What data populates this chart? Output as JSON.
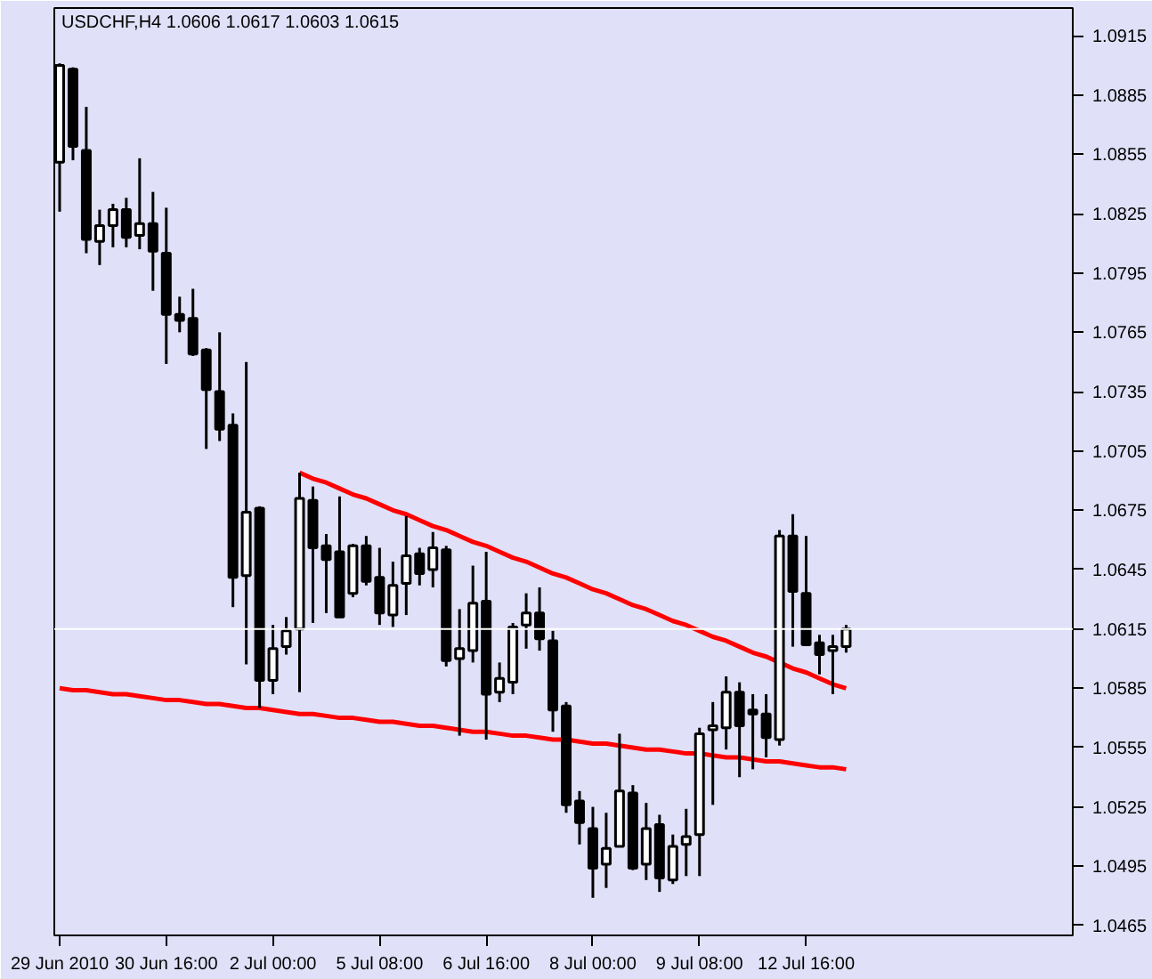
{
  "chart_data": {
    "type": "candlestick",
    "title": "USDCHF,H4  1.0606 1.0617 1.0603 1.0615",
    "categories": [
      "29 Jun 2010",
      null,
      null,
      null,
      null,
      null,
      null,
      null,
      "30 Jun 16:00",
      null,
      null,
      null,
      null,
      null,
      null,
      null,
      "2 Jul 00:00",
      null,
      null,
      null,
      null,
      null,
      null,
      null,
      "5 Jul 08:00",
      null,
      null,
      null,
      null,
      null,
      null,
      null,
      "6 Jul 16:00",
      null,
      null,
      null,
      null,
      null,
      null,
      null,
      "8 Jul 00:00",
      null,
      null,
      null,
      null,
      null,
      null,
      null,
      "9 Jul 08:00",
      null,
      null,
      null,
      null,
      null,
      null,
      null,
      "12 Jul 16:00",
      null,
      null,
      null
    ],
    "ohlc": [
      [
        1.0851,
        1.0901,
        1.0826,
        1.09
      ],
      [
        1.0898,
        1.0899,
        1.0852,
        1.0859
      ],
      [
        1.0857,
        1.0879,
        1.0805,
        1.0812
      ],
      [
        1.0811,
        1.0827,
        1.0799,
        1.0819
      ],
      [
        1.0819,
        1.083,
        1.0808,
        1.0827
      ],
      [
        1.0827,
        1.0833,
        1.0808,
        1.0813
      ],
      [
        1.0814,
        1.0853,
        1.0807,
        1.082
      ],
      [
        1.082,
        1.0836,
        1.0786,
        1.0806
      ],
      [
        1.0805,
        1.0828,
        1.0749,
        1.0774
      ],
      [
        1.0774,
        1.0783,
        1.0765,
        1.0771
      ],
      [
        1.0772,
        1.0787,
        1.0753,
        1.0754
      ],
      [
        1.0756,
        1.0757,
        1.0706,
        1.0736
      ],
      [
        1.0735,
        1.0765,
        1.071,
        1.0716
      ],
      [
        1.0718,
        1.0724,
        1.0626,
        1.0641
      ],
      [
        1.0642,
        1.075,
        1.0597,
        1.0674
      ],
      [
        1.0676,
        1.0677,
        1.0575,
        1.0589
      ],
      [
        1.0589,
        1.0617,
        1.0582,
        1.0605
      ],
      [
        1.0606,
        1.0621,
        1.0602,
        1.0614
      ],
      [
        1.0615,
        1.0694,
        1.0583,
        1.0681
      ],
      [
        1.068,
        1.0687,
        1.0618,
        1.0656
      ],
      [
        1.0657,
        1.0663,
        1.0623,
        1.065
      ],
      [
        1.0654,
        1.0682,
        1.0621,
        1.0621
      ],
      [
        1.0633,
        1.0658,
        1.0631,
        1.0657
      ],
      [
        1.0657,
        1.0662,
        1.0637,
        1.0639
      ],
      [
        1.0641,
        1.0656,
        1.0617,
        1.0623
      ],
      [
        1.0622,
        1.0649,
        1.0616,
        1.0637
      ],
      [
        1.0638,
        1.0672,
        1.0622,
        1.0652
      ],
      [
        1.0653,
        1.0656,
        1.0637,
        1.0643
      ],
      [
        1.0645,
        1.0664,
        1.0636,
        1.0656
      ],
      [
        1.0655,
        1.0657,
        1.0596,
        1.0599
      ],
      [
        1.06,
        1.0625,
        1.0561,
        1.0605
      ],
      [
        1.0604,
        1.0647,
        1.0598,
        1.0628
      ],
      [
        1.0629,
        1.0654,
        1.0559,
        1.0582
      ],
      [
        1.0583,
        1.0598,
        1.0578,
        1.059
      ],
      [
        1.0588,
        1.0618,
        1.0582,
        1.0616
      ],
      [
        1.0617,
        1.0633,
        1.0605,
        1.0623
      ],
      [
        1.0623,
        1.0636,
        1.0604,
        1.061
      ],
      [
        1.0609,
        1.0614,
        1.0563,
        1.0574
      ],
      [
        1.0576,
        1.0578,
        1.0522,
        1.0526
      ],
      [
        1.0528,
        1.0533,
        1.0506,
        1.0517
      ],
      [
        1.0514,
        1.0525,
        1.0479,
        1.0494
      ],
      [
        1.0496,
        1.0522,
        1.0484,
        1.0504
      ],
      [
        1.0505,
        1.0562,
        1.0505,
        1.0533
      ],
      [
        1.0532,
        1.0536,
        1.0493,
        1.0494
      ],
      [
        1.0496,
        1.0527,
        1.0488,
        1.0514
      ],
      [
        1.0516,
        1.0521,
        1.0482,
        1.0489
      ],
      [
        1.0488,
        1.0511,
        1.0486,
        1.0505
      ],
      [
        1.0506,
        1.0524,
        1.049,
        1.051
      ],
      [
        1.0511,
        1.0565,
        1.049,
        1.0562
      ],
      [
        1.0564,
        1.0578,
        1.0526,
        1.0566
      ],
      [
        1.0565,
        1.0591,
        1.0554,
        1.0583
      ],
      [
        1.0583,
        1.0588,
        1.054,
        1.0566
      ],
      [
        1.0574,
        1.0582,
        1.0544,
        1.0572
      ],
      [
        1.0572,
        1.0582,
        1.055,
        1.056
      ],
      [
        1.0559,
        1.0665,
        1.0556,
        1.0662
      ],
      [
        1.0662,
        1.0673,
        1.0606,
        1.0634
      ],
      [
        1.0633,
        1.0662,
        1.0607,
        1.0607
      ],
      [
        1.0608,
        1.0612,
        1.0592,
        1.0602
      ],
      [
        1.0604,
        1.0612,
        1.0582,
        1.0606
      ],
      [
        1.0606,
        1.0617,
        1.0603,
        1.0615
      ]
    ],
    "series": [
      {
        "type": "line",
        "color": "#ff0000",
        "values": [
          null,
          null,
          null,
          null,
          null,
          null,
          null,
          null,
          null,
          null,
          null,
          null,
          null,
          null,
          null,
          null,
          null,
          null,
          1.0694,
          1.0691,
          1.0689,
          1.0686,
          1.0683,
          1.0681,
          1.0678,
          1.0675,
          1.0673,
          1.067,
          1.0667,
          1.0665,
          1.0662,
          1.0659,
          1.0657,
          1.0654,
          1.0651,
          1.0649,
          1.0646,
          1.0643,
          1.0641,
          1.0638,
          1.0635,
          1.0633,
          1.063,
          1.0627,
          1.0625,
          1.0622,
          1.0619,
          1.0617,
          1.0614,
          1.0611,
          1.0609,
          1.0606,
          1.0603,
          1.0601,
          1.0598,
          1.0595,
          1.0593,
          1.059,
          1.0587,
          1.0585
        ]
      },
      {
        "type": "line",
        "color": "#ff0000",
        "values": [
          1.0585,
          1.0584,
          1.0584,
          1.0583,
          1.0582,
          1.0582,
          1.0581,
          1.058,
          1.0579,
          1.0579,
          1.0578,
          1.0577,
          1.0577,
          1.0576,
          1.0575,
          1.0575,
          1.0574,
          1.0573,
          1.0572,
          1.0572,
          1.0571,
          1.057,
          1.057,
          1.0569,
          1.0568,
          1.0568,
          1.0567,
          1.0566,
          1.0566,
          1.0565,
          1.0564,
          1.0563,
          1.0563,
          1.0562,
          1.0561,
          1.0561,
          1.056,
          1.0559,
          1.0559,
          1.0558,
          1.0557,
          1.0557,
          1.0556,
          1.0555,
          1.0554,
          1.0554,
          1.0553,
          1.0552,
          1.0552,
          1.0551,
          1.055,
          1.055,
          1.0549,
          1.0548,
          1.0548,
          1.0547,
          1.0546,
          1.0545,
          1.0545,
          1.0544
        ]
      }
    ],
    "ylim": [
      1.046,
      1.0929
    ],
    "yticks": [
      {
        "value": 1.0465,
        "label": "1.0465"
      },
      {
        "value": 1.0495,
        "label": "1.0495"
      },
      {
        "value": 1.0525,
        "label": "1.0525"
      },
      {
        "value": 1.0555,
        "label": "1.0555"
      },
      {
        "value": 1.0585,
        "label": "1.0585"
      },
      {
        "value": 1.0615,
        "label": "1.0615"
      },
      {
        "value": 1.0645,
        "label": "1.0645"
      },
      {
        "value": 1.0675,
        "label": "1.0675"
      },
      {
        "value": 1.0705,
        "label": "1.0705"
      },
      {
        "value": 1.0735,
        "label": "1.0735"
      },
      {
        "value": 1.0765,
        "label": "1.0765"
      },
      {
        "value": 1.0795,
        "label": "1.0795"
      },
      {
        "value": 1.0825,
        "label": "1.0825"
      },
      {
        "value": 1.0855,
        "label": "1.0855"
      },
      {
        "value": 1.0885,
        "label": "1.0885"
      },
      {
        "value": 1.0915,
        "label": "1.0915"
      }
    ],
    "ref_lines": [
      {
        "axis": "y",
        "value": 1.0615,
        "color": "#ffffff"
      }
    ],
    "grid": false
  }
}
